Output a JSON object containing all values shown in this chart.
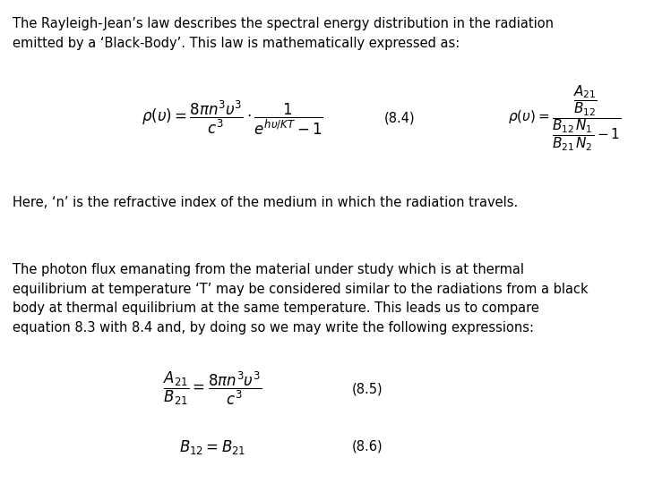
{
  "background_color": "#ffffff",
  "text_color": "#000000",
  "figsize": [
    7.2,
    5.4
  ],
  "dpi": 100,
  "paragraph1_line1": "The Rayleigh-Jean’s law describes the spectral energy distribution in the radiation",
  "paragraph1_line2": "emitted by a ‘Black-Body’. This law is mathematically expressed as:",
  "eq84_label": "(8.4)",
  "eq85_label": "(8.5)",
  "eq86_label": "(8.6)",
  "here_text": "Here, ‘n’ is the refractive index of the medium in which the radiation travels.",
  "paragraph2_line1": "The photon flux emanating from the material under study which is at thermal",
  "paragraph2_line2": "equilibrium at temperature ‘T’ may be considered similar to the radiations from a black",
  "paragraph2_line3": "body at thermal equilibrium at the same temperature. This leads us to compare",
  "paragraph2_line4": "equation 8.3 with 8.4 and, by doing so we may write the following expressions:"
}
